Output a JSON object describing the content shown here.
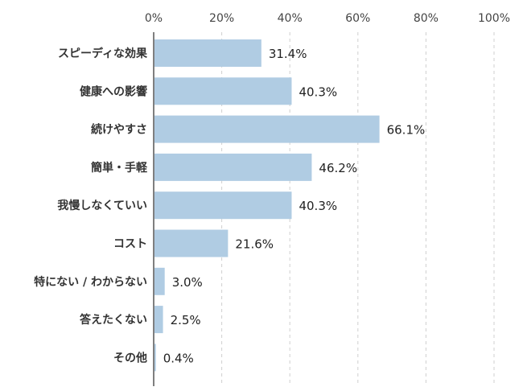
{
  "chart_data": {
    "type": "bar",
    "orientation": "horizontal",
    "categories": [
      "スピーディな効果",
      "健康への影響",
      "続けやすさ",
      "簡単・手軽",
      "我慢しなくていい",
      "コスト",
      "特にない / わからない",
      "答えたくない",
      "その他"
    ],
    "values": [
      31.4,
      40.3,
      66.1,
      46.2,
      40.3,
      21.6,
      3.0,
      2.5,
      0.4
    ],
    "value_labels": [
      "31.4%",
      "40.3%",
      "66.1%",
      "46.2%",
      "40.3%",
      "21.6%",
      "3.0%",
      "2.5%",
      "0.4%"
    ],
    "xlim": [
      0,
      100
    ],
    "x_ticks": [
      0,
      20,
      40,
      60,
      80,
      100
    ],
    "x_tick_labels": [
      "0%",
      "20%",
      "40%",
      "60%",
      "80%",
      "100%"
    ],
    "axis_position": "top",
    "grid": true,
    "bar_color": "#b0cce3",
    "title": "",
    "xlabel": "",
    "ylabel": ""
  }
}
